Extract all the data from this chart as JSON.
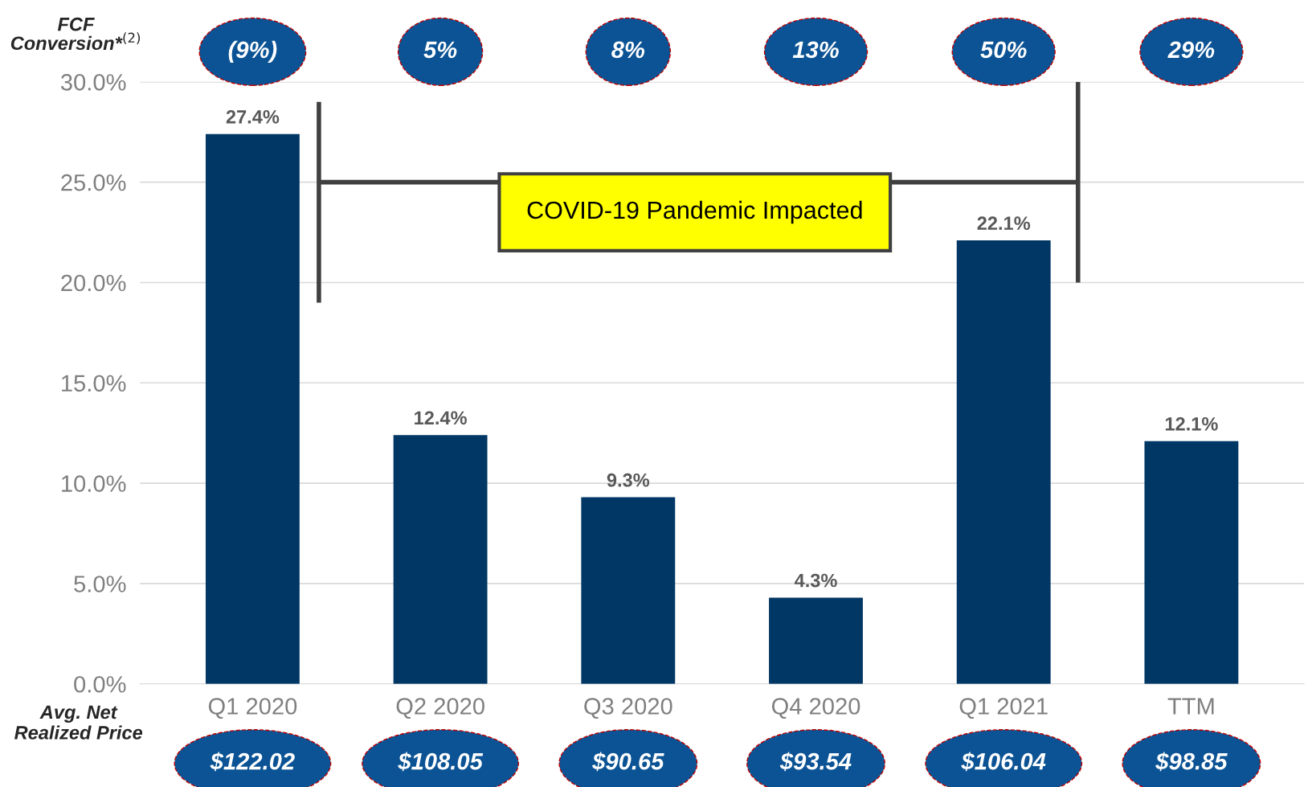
{
  "chart_data": {
    "type": "bar",
    "categories": [
      "Q1 2020",
      "Q2 2020",
      "Q3 2020",
      "Q4 2020",
      "Q1 2021",
      "TTM"
    ],
    "values": [
      27.4,
      12.4,
      9.3,
      4.3,
      22.1,
      12.1
    ],
    "value_labels": [
      "27.4%",
      "12.4%",
      "9.3%",
      "4.3%",
      "22.1%",
      "12.1%"
    ],
    "color": "#003764",
    "ylim": [
      0,
      30
    ],
    "yticks": [
      {
        "value": 0,
        "label": "0.0%"
      },
      {
        "value": 5,
        "label": "5.0%"
      },
      {
        "value": 10,
        "label": "10.0%"
      },
      {
        "value": 15,
        "label": "15.0%"
      },
      {
        "value": 20,
        "label": "20.0%"
      },
      {
        "value": 25,
        "label": "25.0%"
      },
      {
        "value": 30,
        "label": "30.0%"
      }
    ],
    "grid": "y",
    "annotations": [
      "COVID-19 Pandemic Impacted",
      "FCF\nConversion*$^{(2)}$",
      "(9%)",
      "5%",
      "8%",
      "13%",
      "50%",
      "29%",
      "Avg. Net\nRealized Price",
      "$122.02",
      "$108.05",
      "$90.65",
      "$93.54",
      "$106.04",
      "$98.85"
    ]
  }
}
